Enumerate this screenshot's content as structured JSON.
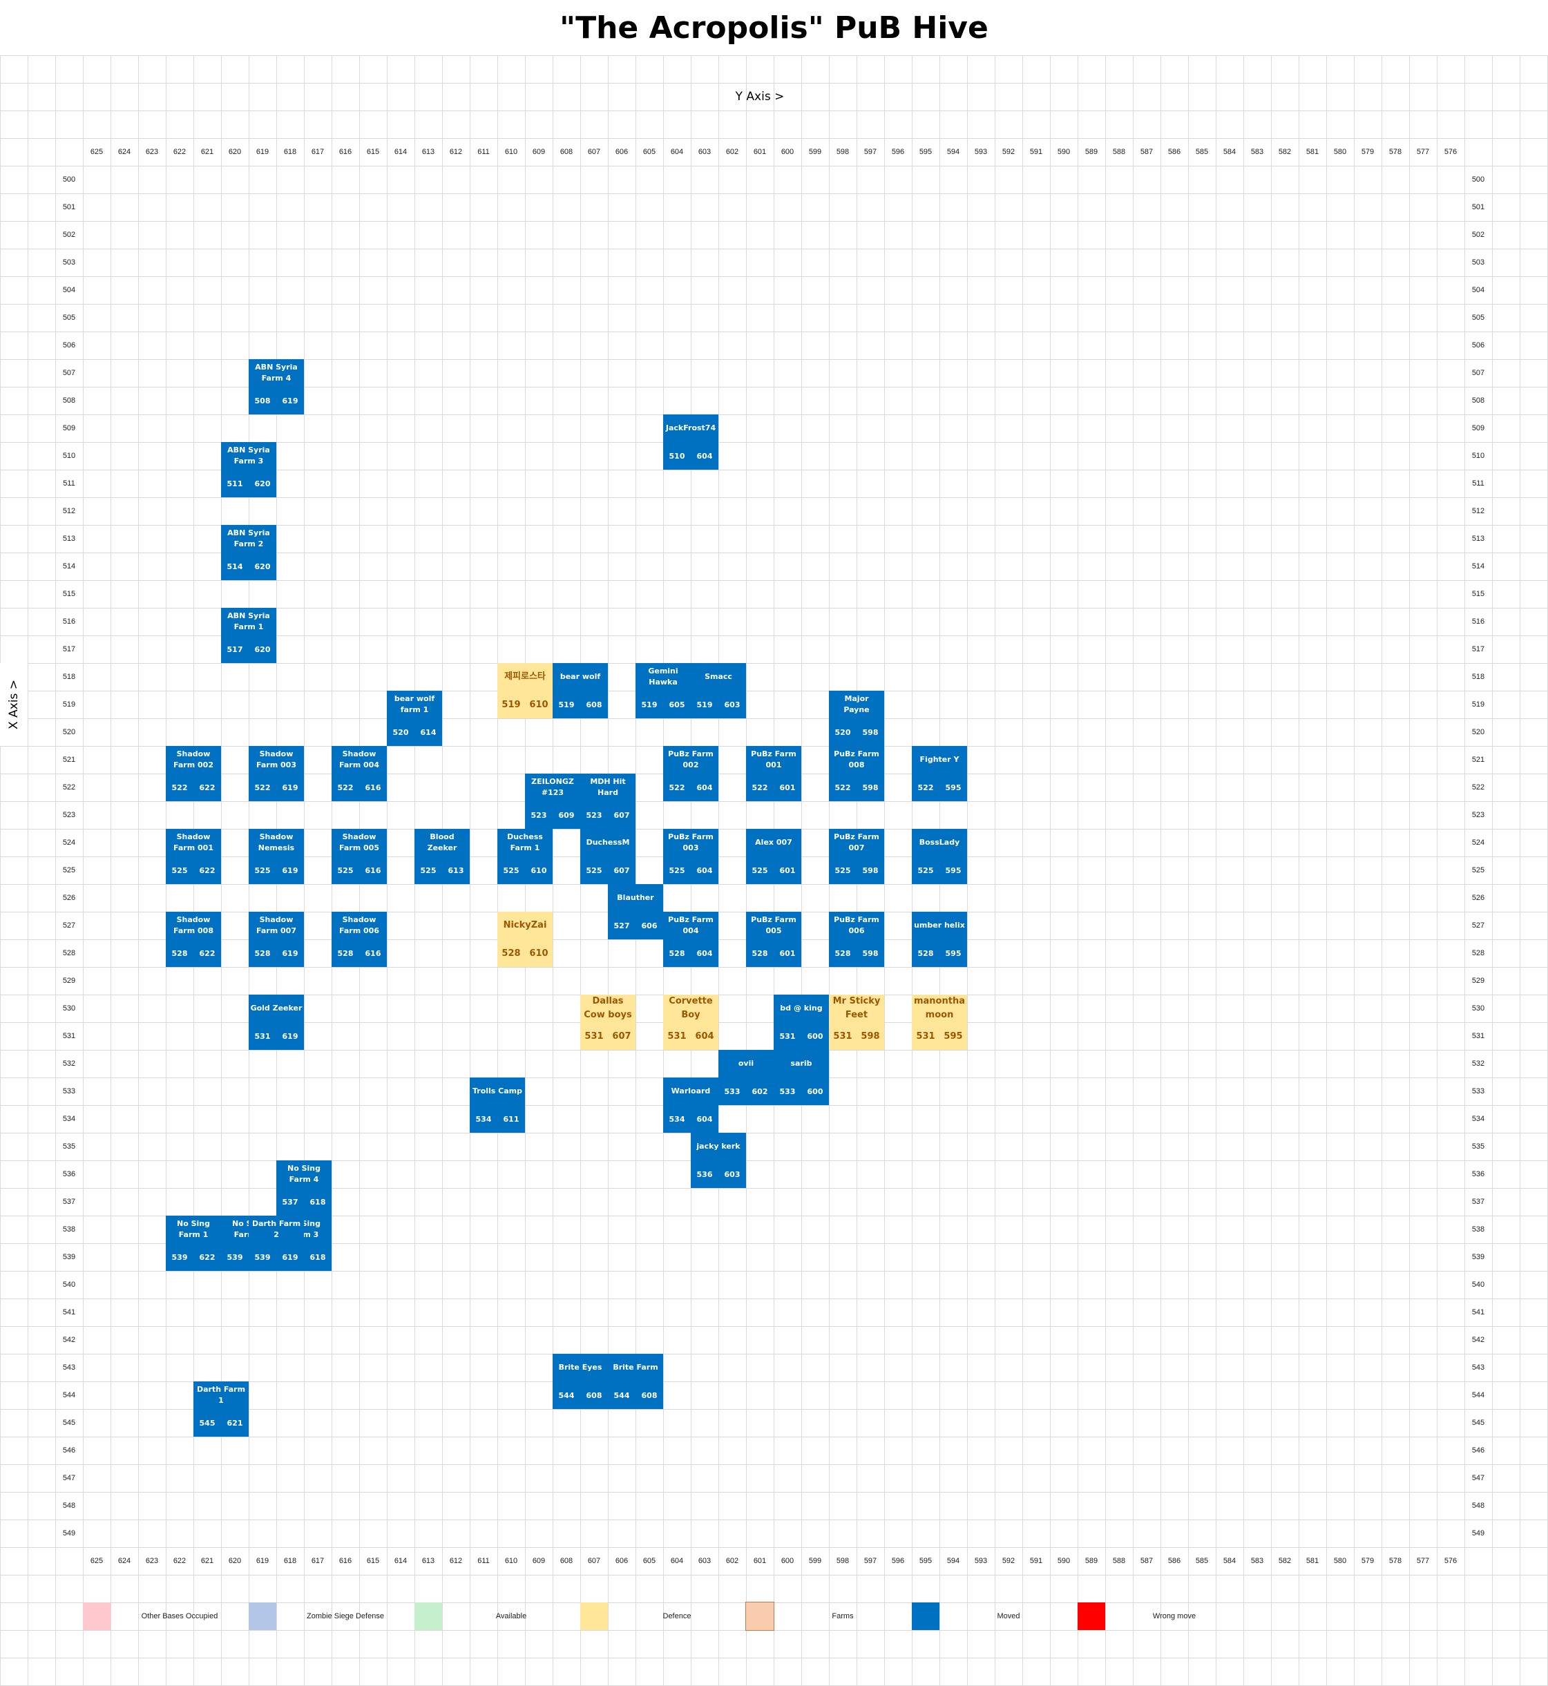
{
  "title": "\"The Acropolis\" PuB Hive",
  "y_axis_label": "Y Axis >",
  "x_axis_label": "X Axis >",
  "columns": [
    "625",
    "624",
    "623",
    "622",
    "621",
    "620",
    "619",
    "618",
    "617",
    "616",
    "615",
    "614",
    "613",
    "612",
    "611",
    "610",
    "609",
    "608",
    "607",
    "606",
    "605",
    "604",
    "603",
    "602",
    "601",
    "600",
    "599",
    "598",
    "597",
    "596",
    "595",
    "594",
    "593",
    "592",
    "591",
    "590",
    "589",
    "588",
    "587",
    "586",
    "585",
    "584",
    "583",
    "582",
    "581",
    "580",
    "579",
    "578",
    "577",
    "576"
  ],
  "rows": [
    "500",
    "501",
    "502",
    "503",
    "504",
    "505",
    "506",
    "507",
    "508",
    "509",
    "510",
    "511",
    "512",
    "513",
    "514",
    "515",
    "516",
    "517",
    "518",
    "519",
    "520",
    "521",
    "522",
    "523",
    "524",
    "525",
    "526",
    "527",
    "528",
    "529",
    "530",
    "531",
    "532",
    "533",
    "534",
    "535",
    "536",
    "537",
    "538",
    "539",
    "540",
    "541",
    "542",
    "543",
    "544",
    "545",
    "546",
    "547",
    "548",
    "549"
  ],
  "colors": {
    "moved": "#0070c0",
    "defence": "#ffe699",
    "other_bases_occupied": "#ffc7ce",
    "zombie_siege_defense": "#b4c6e7",
    "available": "#c6efce",
    "farms": "#f8cbad",
    "wrong_move": "#ff0000"
  },
  "bases": [
    {
      "name": "ABN Syria Farm 4",
      "x": "508",
      "y": "619",
      "type": "moved"
    },
    {
      "name": "JackFrost74",
      "x": "510",
      "y": "604",
      "type": "moved"
    },
    {
      "name": "ABN Syria Farm 3",
      "x": "511",
      "y": "620",
      "type": "moved"
    },
    {
      "name": "ABN Syria Farm 2",
      "x": "514",
      "y": "620",
      "type": "moved"
    },
    {
      "name": "ABN Syria Farm 1",
      "x": "517",
      "y": "620",
      "type": "moved"
    },
    {
      "name": "제피로스타",
      "x": "519",
      "y": "610",
      "type": "defence"
    },
    {
      "name": "bear wolf",
      "x": "519",
      "y": "608",
      "type": "moved"
    },
    {
      "name": "Gemini Hawka",
      "x": "519",
      "y": "605",
      "type": "moved"
    },
    {
      "name": "Smacc",
      "x": "519",
      "y": "603",
      "type": "moved"
    },
    {
      "name": "bear wolf farm 1",
      "x": "520",
      "y": "614",
      "type": "moved"
    },
    {
      "name": "Major Payne",
      "x": "520",
      "y": "598",
      "type": "moved"
    },
    {
      "name": "Shadow Farm 002",
      "x": "522",
      "y": "622",
      "type": "moved"
    },
    {
      "name": "Shadow Farm 003",
      "x": "522",
      "y": "619",
      "type": "moved"
    },
    {
      "name": "Shadow Farm 004",
      "x": "522",
      "y": "616",
      "type": "moved"
    },
    {
      "name": "PuBz Farm 002",
      "x": "522",
      "y": "604",
      "type": "moved"
    },
    {
      "name": "PuBz Farm 001",
      "x": "522",
      "y": "601",
      "type": "moved"
    },
    {
      "name": "PuBz Farm 008",
      "x": "522",
      "y": "598",
      "type": "moved"
    },
    {
      "name": "Fighter Y",
      "x": "522",
      "y": "595",
      "type": "moved"
    },
    {
      "name": "ZEILONGZ #123",
      "x": "523",
      "y": "609",
      "type": "moved"
    },
    {
      "name": "MDH Hit Hard",
      "x": "523",
      "y": "607",
      "type": "moved"
    },
    {
      "name": "Shadow Farm 001",
      "x": "525",
      "y": "622",
      "type": "moved"
    },
    {
      "name": "Shadow Nemesis",
      "x": "525",
      "y": "619",
      "type": "moved"
    },
    {
      "name": "Shadow Farm 005",
      "x": "525",
      "y": "616",
      "type": "moved"
    },
    {
      "name": "Blood Zeeker",
      "x": "525",
      "y": "613",
      "type": "moved"
    },
    {
      "name": "Duchess Farm 1",
      "x": "525",
      "y": "610",
      "type": "moved"
    },
    {
      "name": "DuchessM",
      "x": "525",
      "y": "607",
      "type": "moved"
    },
    {
      "name": "PuBz Farm 003",
      "x": "525",
      "y": "604",
      "type": "moved"
    },
    {
      "name": "Alex 007",
      "x": "525",
      "y": "601",
      "type": "moved"
    },
    {
      "name": "PuBz Farm 007",
      "x": "525",
      "y": "598",
      "type": "moved"
    },
    {
      "name": "BossLady",
      "x": "525",
      "y": "595",
      "type": "moved"
    },
    {
      "name": "Blauther",
      "x": "527",
      "y": "606",
      "type": "moved"
    },
    {
      "name": "Shadow Farm 008",
      "x": "528",
      "y": "622",
      "type": "moved"
    },
    {
      "name": "Shadow Farm 007",
      "x": "528",
      "y": "619",
      "type": "moved"
    },
    {
      "name": "Shadow Farm 006",
      "x": "528",
      "y": "616",
      "type": "moved"
    },
    {
      "name": "NickyZai",
      "x": "528",
      "y": "610",
      "type": "defence"
    },
    {
      "name": "PuBz Farm 004",
      "x": "528",
      "y": "604",
      "type": "moved"
    },
    {
      "name": "PuBz Farm 005",
      "x": "528",
      "y": "601",
      "type": "moved"
    },
    {
      "name": "PuBz Farm 006",
      "x": "528",
      "y": "598",
      "type": "moved"
    },
    {
      "name": "umber helix",
      "x": "528",
      "y": "595",
      "type": "moved"
    },
    {
      "name": "Gold Zeeker",
      "x": "531",
      "y": "619",
      "type": "moved"
    },
    {
      "name": "Dallas Cow boys",
      "x": "531",
      "y": "607",
      "type": "defence"
    },
    {
      "name": "Corvette Boy",
      "x": "531",
      "y": "604",
      "type": "defence"
    },
    {
      "name": "bd @ king",
      "x": "531",
      "y": "600",
      "type": "moved"
    },
    {
      "name": "Mr Sticky Feet",
      "x": "531",
      "y": "598",
      "type": "defence"
    },
    {
      "name": "manontha moon",
      "x": "531",
      "y": "595",
      "type": "defence"
    },
    {
      "name": "ovii",
      "x": "533",
      "y": "602",
      "type": "moved"
    },
    {
      "name": "sarib",
      "x": "533",
      "y": "600",
      "type": "moved"
    },
    {
      "name": "Warloard",
      "x": "534",
      "y": "604",
      "type": "moved"
    },
    {
      "name": "Trolls Camp",
      "x": "534",
      "y": "611",
      "type": "moved"
    },
    {
      "name": "jacky kerk",
      "x": "536",
      "y": "603",
      "type": "moved"
    },
    {
      "name": "No Sing Farm 4",
      "x": "537",
      "y": "618",
      "type": "moved"
    },
    {
      "name": "No Sing Farm 1",
      "x": "539",
      "y": "622",
      "type": "moved"
    },
    {
      "name": "No Sing Farm 2",
      "x": "539",
      "y": "620",
      "type": "moved"
    },
    {
      "name": "No Sing Farm 3",
      "x": "539",
      "y": "618",
      "type": "moved"
    },
    {
      "name": "Darth Farm 2",
      "x": "539",
      "y": "619",
      "type": "moved"
    },
    {
      "name": "Brite Eyes",
      "x": "544",
      "y": "608",
      "type": "moved"
    },
    {
      "name": "Brite Farm",
      "x": "544",
      "y": "608",
      "type": "moved"
    },
    {
      "name": "Darth Farm 1",
      "x": "545",
      "y": "621",
      "type": "moved"
    }
  ],
  "legend": [
    {
      "label": "Other Bases Occupied",
      "color": "#ffc7ce"
    },
    {
      "label": "Zombie Siege Defense",
      "color": "#b4c6e7"
    },
    {
      "label": "Available",
      "color": "#c6efce"
    },
    {
      "label": "Defence",
      "color": "#ffe699"
    },
    {
      "label": "Farms",
      "color": "#f8cbad"
    },
    {
      "label": "Moved",
      "color": "#0070c0"
    },
    {
      "label": "Wrong move",
      "color": "#ff0000"
    }
  ]
}
